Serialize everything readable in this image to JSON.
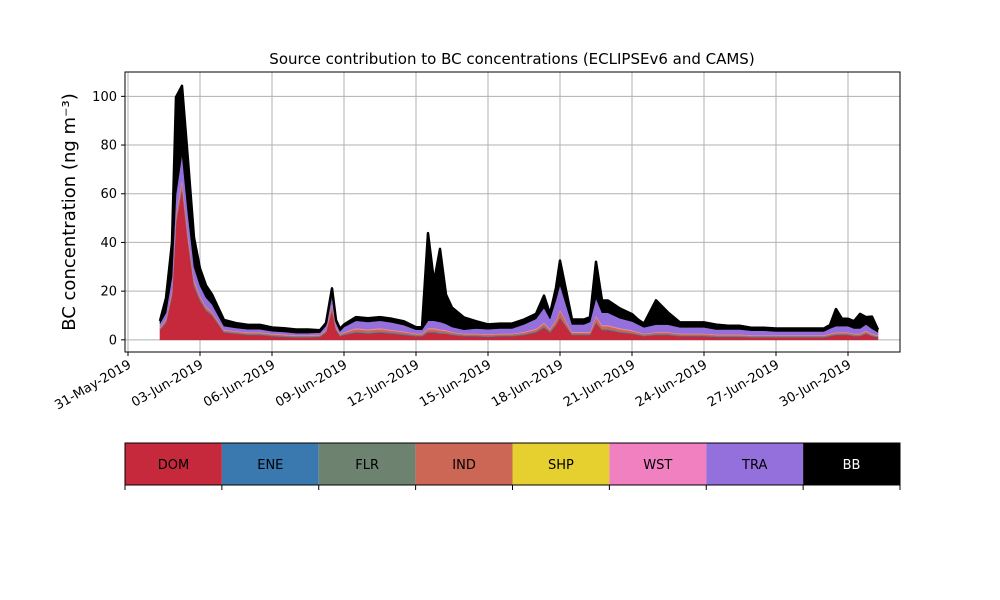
{
  "chart_data": {
    "type": "area",
    "stacked": true,
    "title": "Source contribution to BC concentrations (ECLIPSEv6 and CAMS)",
    "ylabel": "BC concentration (ng m⁻³)",
    "xlabel": "",
    "ylim": [
      -5,
      110
    ],
    "xlim_days": [
      "2019-05-31",
      "2019-07-02"
    ],
    "yticks": [
      0,
      20,
      40,
      60,
      80,
      100
    ],
    "xtick_dates": [
      "2019-05-31",
      "2019-06-03",
      "2019-06-06",
      "2019-06-09",
      "2019-06-12",
      "2019-06-15",
      "2019-06-18",
      "2019-06-21",
      "2019-06-24",
      "2019-06-27",
      "2019-06-30"
    ],
    "xtick_labels": [
      "31-May-2019",
      "03-Jun-2019",
      "06-Jun-2019",
      "09-Jun-2019",
      "12-Jun-2019",
      "15-Jun-2019",
      "18-Jun-2019",
      "21-Jun-2019",
      "24-Jun-2019",
      "27-Jun-2019",
      "30-Jun-2019"
    ],
    "grid": true,
    "legend_placement": "bottom colorbar",
    "x_dates": [
      "2019-06-01 08:00",
      "2019-06-01 14:00",
      "2019-06-01 20:00",
      "2019-06-02 00:00",
      "2019-06-02 06:00",
      "2019-06-02 12:00",
      "2019-06-02 18:00",
      "2019-06-03 00:00",
      "2019-06-03 06:00",
      "2019-06-03 12:00",
      "2019-06-04 00:00",
      "2019-06-04 12:00",
      "2019-06-05 00:00",
      "2019-06-05 12:00",
      "2019-06-06 00:00",
      "2019-06-06 12:00",
      "2019-06-07 00:00",
      "2019-06-07 12:00",
      "2019-06-08 00:00",
      "2019-06-08 06:00",
      "2019-06-08 12:00",
      "2019-06-08 16:00",
      "2019-06-08 20:00",
      "2019-06-09 00:00",
      "2019-06-09 12:00",
      "2019-06-10 00:00",
      "2019-06-10 12:00",
      "2019-06-11 00:00",
      "2019-06-11 12:00",
      "2019-06-12 00:00",
      "2019-06-12 06:00",
      "2019-06-12 12:00",
      "2019-06-12 18:00",
      "2019-06-13 00:00",
      "2019-06-13 06:00",
      "2019-06-13 12:00",
      "2019-06-14 00:00",
      "2019-06-14 12:00",
      "2019-06-15 00:00",
      "2019-06-15 12:00",
      "2019-06-16 00:00",
      "2019-06-16 12:00",
      "2019-06-17 00:00",
      "2019-06-17 08:00",
      "2019-06-17 14:00",
      "2019-06-17 20:00",
      "2019-06-18 00:00",
      "2019-06-18 12:00",
      "2019-06-19 00:00",
      "2019-06-19 06:00",
      "2019-06-19 12:00",
      "2019-06-19 18:00",
      "2019-06-20 00:00",
      "2019-06-20 12:00",
      "2019-06-21 00:00",
      "2019-06-21 06:00",
      "2019-06-21 12:00",
      "2019-06-22 00:00",
      "2019-06-22 12:00",
      "2019-06-23 00:00",
      "2019-06-23 12:00",
      "2019-06-24 00:00",
      "2019-06-24 12:00",
      "2019-06-25 00:00",
      "2019-06-25 12:00",
      "2019-06-26 00:00",
      "2019-06-26 12:00",
      "2019-06-27 00:00",
      "2019-06-27 12:00",
      "2019-06-28 00:00",
      "2019-06-28 12:00",
      "2019-06-29 00:00",
      "2019-06-29 06:00",
      "2019-06-29 12:00",
      "2019-06-29 18:00",
      "2019-06-30 00:00",
      "2019-06-30 06:00",
      "2019-06-30 12:00",
      "2019-06-30 18:00",
      "2019-07-01 00:00",
      "2019-07-01 06:00"
    ],
    "series": [
      {
        "name": "DOM",
        "color": "#c6283c",
        "values": [
          4,
          7,
          18,
          48,
          62,
          40,
          22,
          16,
          12,
          10,
          3,
          2.5,
          2,
          2,
          1.5,
          1.2,
          1,
          1,
          1.2,
          3,
          12,
          4,
          1.5,
          2,
          3,
          2.5,
          3,
          2.5,
          2,
          1.5,
          1.5,
          3,
          3,
          2.5,
          2.5,
          2,
          1.5,
          1.5,
          1.2,
          1.5,
          1.5,
          2,
          3,
          5,
          3,
          6,
          9,
          2,
          2,
          2,
          7,
          4,
          4,
          3,
          2.5,
          2,
          1.5,
          2,
          2,
          1.5,
          1.5,
          1.5,
          1.2,
          1.2,
          1.2,
          1,
          1,
          1,
          1,
          1,
          1,
          1,
          1.5,
          2,
          2,
          2,
          1.5,
          1.5,
          2.5,
          1.5,
          1
        ]
      },
      {
        "name": "ENE",
        "color": "#3a78b0",
        "values": [
          0.3,
          0.3,
          0.5,
          0.5,
          0.5,
          0.5,
          0.5,
          0.5,
          0.3,
          0.3,
          0.2,
          0.2,
          0.2,
          0.2,
          0.2,
          0.2,
          0.2,
          0.2,
          0.2,
          0.2,
          0.3,
          0.2,
          0.2,
          0.2,
          0.3,
          0.3,
          0.3,
          0.3,
          0.3,
          0.2,
          0.2,
          0.3,
          0.3,
          0.3,
          0.2,
          0.2,
          0.2,
          0.2,
          0.2,
          0.2,
          0.2,
          0.2,
          0.3,
          0.3,
          0.3,
          0.3,
          0.3,
          0.2,
          0.2,
          0.2,
          0.3,
          0.3,
          0.3,
          0.3,
          0.2,
          0.2,
          0.2,
          0.2,
          0.2,
          0.2,
          0.2,
          0.2,
          0.2,
          0.2,
          0.2,
          0.2,
          0.2,
          0.2,
          0.2,
          0.2,
          0.2,
          0.2,
          0.2,
          0.2,
          0.2,
          0.2,
          0.2,
          0.2,
          0.2,
          0.2,
          0.2
        ]
      },
      {
        "name": "FLR",
        "color": "#6e8270",
        "values": [
          0.2,
          0.2,
          0.3,
          0.3,
          0.3,
          0.3,
          0.3,
          0.3,
          0.2,
          0.2,
          0.2,
          0.2,
          0.2,
          0.2,
          0.2,
          0.2,
          0.2,
          0.2,
          0.2,
          0.2,
          0.3,
          0.2,
          0.2,
          0.2,
          0.2,
          0.2,
          0.2,
          0.2,
          0.2,
          0.2,
          0.2,
          0.2,
          0.2,
          0.2,
          0.2,
          0.2,
          0.2,
          0.2,
          0.2,
          0.2,
          0.2,
          0.2,
          0.2,
          0.2,
          0.2,
          0.2,
          0.2,
          0.2,
          0.2,
          0.2,
          0.2,
          0.2,
          0.2,
          0.2,
          0.2,
          0.2,
          0.2,
          0.2,
          0.2,
          0.2,
          0.2,
          0.2,
          0.2,
          0.2,
          0.2,
          0.2,
          0.2,
          0.2,
          0.2,
          0.2,
          0.2,
          0.2,
          0.2,
          0.2,
          0.2,
          0.2,
          0.2,
          0.2,
          0.2,
          0.2,
          0.2
        ]
      },
      {
        "name": "IND",
        "color": "#cc6655",
        "values": [
          0.5,
          0.8,
          1.5,
          2,
          2.5,
          2,
          1.5,
          1,
          1,
          0.8,
          0.5,
          0.5,
          0.5,
          0.5,
          0.4,
          0.4,
          0.3,
          0.3,
          0.3,
          0.6,
          2,
          0.8,
          0.4,
          0.6,
          1,
          1,
          1,
          0.8,
          0.7,
          0.5,
          0.5,
          1,
          1,
          1,
          0.8,
          0.6,
          0.5,
          0.5,
          0.5,
          0.5,
          0.5,
          0.6,
          0.8,
          1.2,
          0.8,
          1.5,
          2.5,
          0.6,
          0.6,
          0.6,
          2,
          1.2,
          1.2,
          1,
          0.8,
          0.6,
          0.5,
          0.6,
          0.6,
          0.5,
          0.5,
          0.5,
          0.4,
          0.4,
          0.4,
          0.3,
          0.3,
          0.3,
          0.3,
          0.3,
          0.3,
          0.3,
          0.5,
          0.5,
          0.5,
          0.5,
          0.5,
          0.5,
          0.6,
          0.4,
          0.3
        ]
      },
      {
        "name": "SHP",
        "color": "#e6d030",
        "values": [
          0.05,
          0.05,
          0.05,
          0.05,
          0.05,
          0.05,
          0.05,
          0.05,
          0.05,
          0.05,
          0.05,
          0.05,
          0.05,
          0.05,
          0.05,
          0.05,
          0.05,
          0.05,
          0.05,
          0.05,
          0.05,
          0.05,
          0.05,
          0.05,
          0.05,
          0.05,
          0.05,
          0.05,
          0.05,
          0.05,
          0.05,
          0.05,
          0.05,
          0.05,
          0.05,
          0.05,
          0.05,
          0.05,
          0.05,
          0.05,
          0.05,
          0.05,
          0.05,
          0.05,
          0.05,
          0.05,
          0.05,
          0.05,
          0.05,
          0.05,
          0.05,
          0.05,
          0.05,
          0.05,
          0.05,
          0.05,
          0.05,
          0.05,
          0.05,
          0.05,
          0.05,
          0.05,
          0.05,
          0.05,
          0.05,
          0.05,
          0.05,
          0.05,
          0.05,
          0.05,
          0.05,
          0.05,
          0.05,
          0.05,
          0.05,
          0.05,
          0.05,
          0.05,
          0.05,
          0.05,
          0.05
        ]
      },
      {
        "name": "WST",
        "color": "#f080c0",
        "values": [
          0.2,
          0.3,
          0.5,
          0.8,
          1,
          0.8,
          0.6,
          0.4,
          0.3,
          0.3,
          0.2,
          0.2,
          0.2,
          0.2,
          0.2,
          0.2,
          0.2,
          0.2,
          0.2,
          0.3,
          0.5,
          0.3,
          0.2,
          0.2,
          0.3,
          0.3,
          0.3,
          0.3,
          0.3,
          0.2,
          0.2,
          0.3,
          0.3,
          0.3,
          0.3,
          0.2,
          0.2,
          0.2,
          0.2,
          0.2,
          0.2,
          0.3,
          0.3,
          0.4,
          0.3,
          0.4,
          0.5,
          0.3,
          0.3,
          0.3,
          0.5,
          0.4,
          0.4,
          0.3,
          0.3,
          0.3,
          0.2,
          0.2,
          0.2,
          0.2,
          0.2,
          0.2,
          0.2,
          0.2,
          0.2,
          0.2,
          0.2,
          0.2,
          0.2,
          0.2,
          0.2,
          0.2,
          0.2,
          0.2,
          0.2,
          0.2,
          0.2,
          0.2,
          0.3,
          0.2,
          0.2
        ]
      },
      {
        "name": "TRA",
        "color": "#9370db",
        "values": [
          1.5,
          2.5,
          5,
          8,
          10,
          8,
          5,
          4,
          3.5,
          3,
          1.5,
          1.2,
          1.2,
          1.2,
          1,
          1,
          0.8,
          0.8,
          0.8,
          1.5,
          3,
          1.5,
          1,
          2,
          3,
          3,
          3,
          3,
          2.5,
          1.5,
          1.5,
          3,
          3,
          3,
          2.5,
          2,
          1.5,
          2,
          2,
          2,
          2,
          3,
          4,
          6,
          4,
          8,
          10,
          3,
          3,
          4,
          7,
          5,
          5,
          4,
          3.5,
          3,
          2.5,
          3,
          3,
          2.5,
          2.5,
          2.5,
          2,
          2,
          2,
          1.8,
          1.8,
          1.5,
          1.5,
          1.5,
          1.5,
          1.5,
          2,
          2.5,
          2.5,
          2.5,
          2,
          2,
          2.5,
          2,
          1.2
        ]
      },
      {
        "name": "BB",
        "color": "#000000",
        "values": [
          1,
          6,
          14,
          40,
          28,
          22,
          12,
          7,
          5,
          4,
          2.5,
          2,
          1.8,
          1.8,
          1.5,
          1.5,
          1.5,
          1.5,
          1,
          1,
          3,
          1,
          1,
          1,
          1.5,
          1.5,
          1.5,
          1.5,
          1.5,
          1,
          1,
          36,
          16,
          30,
          12,
          8,
          5,
          3,
          2,
          2,
          2,
          2,
          2,
          5,
          2,
          5,
          10,
          2,
          2,
          2,
          15,
          5,
          5,
          4,
          3,
          2,
          1.5,
          10,
          5,
          2,
          2,
          2,
          2,
          1.5,
          1.5,
          1.2,
          1.2,
          1.2,
          1.2,
          1.2,
          1.2,
          1.2,
          1.5,
          7,
          3,
          3,
          3,
          6,
          3,
          5,
          1
        ]
      }
    ],
    "legend": [
      {
        "name": "DOM",
        "color": "#c6283c",
        "text_color": "#000000"
      },
      {
        "name": "ENE",
        "color": "#3a78b0",
        "text_color": "#000000"
      },
      {
        "name": "FLR",
        "color": "#6e8270",
        "text_color": "#000000"
      },
      {
        "name": "IND",
        "color": "#cc6655",
        "text_color": "#000000"
      },
      {
        "name": "SHP",
        "color": "#e6d030",
        "text_color": "#000000"
      },
      {
        "name": "WST",
        "color": "#f080c0",
        "text_color": "#000000"
      },
      {
        "name": "TRA",
        "color": "#9370db",
        "text_color": "#000000"
      },
      {
        "name": "BB",
        "color": "#000000",
        "text_color": "#ffffff"
      }
    ]
  }
}
